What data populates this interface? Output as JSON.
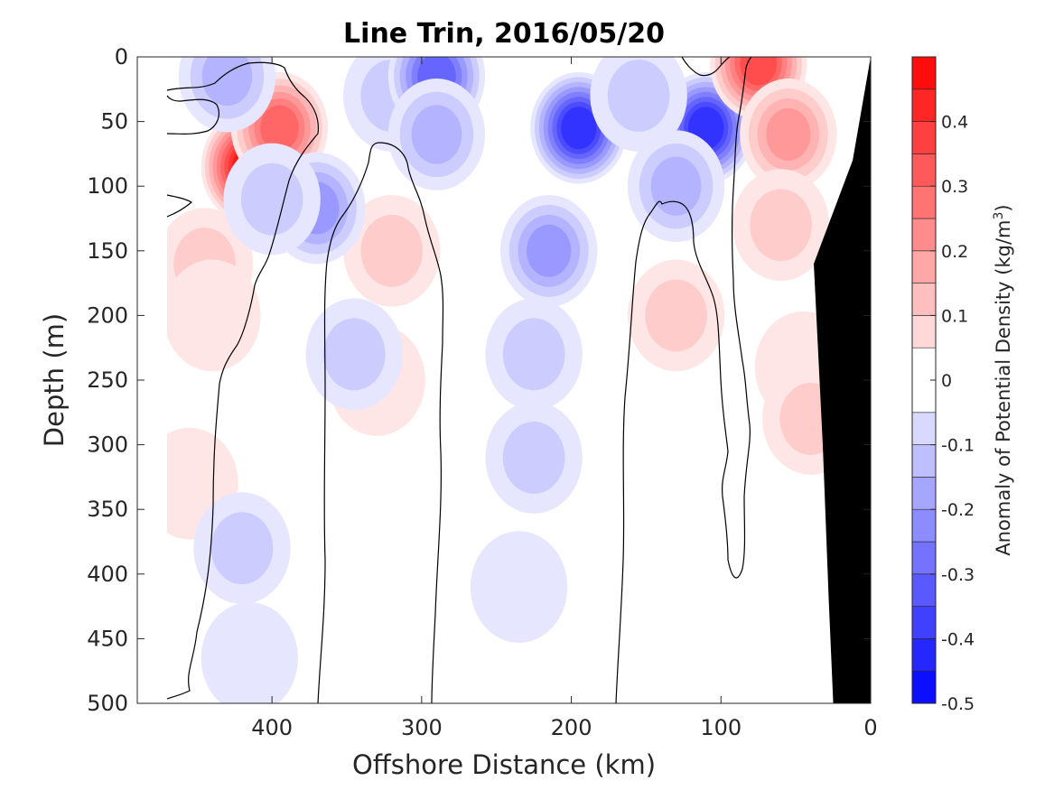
{
  "chart_data": {
    "type": "heatmap",
    "title": "Line Trin, 2016/05/20",
    "xlabel": "Offshore Distance (km)",
    "ylabel": "Depth (m)",
    "colorbar_label": "Anomaly of Potential Density (kg/m",
    "colorbar_label_sup": "3",
    "colorbar_label_end": ")",
    "xlim": [
      490,
      0
    ],
    "ylim": [
      500,
      0
    ],
    "x_ticks": [
      400,
      300,
      200,
      100,
      0
    ],
    "x_tick_labels": [
      "400",
      "300",
      "200",
      "100",
      "0"
    ],
    "y_ticks": [
      0,
      50,
      100,
      150,
      200,
      250,
      300,
      350,
      400,
      450,
      500
    ],
    "y_tick_labels": [
      "0",
      "50",
      "100",
      "150",
      "200",
      "250",
      "300",
      "350",
      "400",
      "450",
      "500"
    ],
    "clim": [
      -0.5,
      0.5
    ],
    "contour_levels": [
      -0.5,
      -0.45,
      -0.4,
      -0.35,
      -0.3,
      -0.25,
      -0.2,
      -0.15,
      -0.1,
      -0.05,
      0.05,
      0.1,
      0.15,
      0.2,
      0.25,
      0.3,
      0.35,
      0.4,
      0.45,
      0.5
    ],
    "colorbar_ticks": [
      0.4,
      0.3,
      0.2,
      0.1,
      0,
      -0.1,
      -0.2,
      -0.3,
      -0.4,
      -0.5
    ],
    "colorbar_tick_labels": [
      "0.4",
      "0.3",
      "0.2",
      "0.1",
      "0",
      "-0.1",
      "-0.2",
      "-0.3",
      "-0.4",
      "-0.5"
    ],
    "colormap": {
      "negative": "#0000ff",
      "neutral": "#ffffff",
      "positive": "#ff0000"
    },
    "zero_contour_color": "#000000",
    "bathymetry_color": "#000000",
    "data_x_range": [
      470,
      0
    ],
    "anomaly_features": [
      {
        "x": 415,
        "depth": 85,
        "value": 0.45
      },
      {
        "x": 395,
        "depth": 55,
        "value": 0.3
      },
      {
        "x": 445,
        "depth": 160,
        "value": 0.12
      },
      {
        "x": 440,
        "depth": 200,
        "value": 0.07
      },
      {
        "x": 455,
        "depth": 330,
        "value": 0.07
      },
      {
        "x": 320,
        "depth": 150,
        "value": 0.1
      },
      {
        "x": 330,
        "depth": 250,
        "value": 0.07
      },
      {
        "x": 370,
        "depth": 117,
        "value": -0.2
      },
      {
        "x": 345,
        "depth": 230,
        "value": -0.08
      },
      {
        "x": 400,
        "depth": 110,
        "value": -0.12
      },
      {
        "x": 320,
        "depth": 30,
        "value": -0.12
      },
      {
        "x": 290,
        "depth": 15,
        "value": -0.3
      },
      {
        "x": 290,
        "depth": 60,
        "value": -0.15
      },
      {
        "x": 430,
        "depth": 15,
        "value": -0.15
      },
      {
        "x": 195,
        "depth": 55,
        "value": -0.38
      },
      {
        "x": 215,
        "depth": 150,
        "value": -0.2
      },
      {
        "x": 225,
        "depth": 230,
        "value": -0.1
      },
      {
        "x": 225,
        "depth": 310,
        "value": -0.08
      },
      {
        "x": 235,
        "depth": 410,
        "value": -0.07
      },
      {
        "x": 110,
        "depth": 55,
        "value": -0.4
      },
      {
        "x": 130,
        "depth": 100,
        "value": -0.13
      },
      {
        "x": 155,
        "depth": 30,
        "value": -0.1
      },
      {
        "x": 420,
        "depth": 380,
        "value": -0.08
      },
      {
        "x": 415,
        "depth": 465,
        "value": -0.07
      },
      {
        "x": 75,
        "depth": 5,
        "value": 0.35
      },
      {
        "x": 55,
        "depth": 60,
        "value": 0.2
      },
      {
        "x": 60,
        "depth": 130,
        "value": 0.12
      },
      {
        "x": 45,
        "depth": 240,
        "value": 0.07
      },
      {
        "x": 130,
        "depth": 200,
        "value": 0.08
      },
      {
        "x": 40,
        "depth": 280,
        "value": 0.08
      }
    ]
  }
}
